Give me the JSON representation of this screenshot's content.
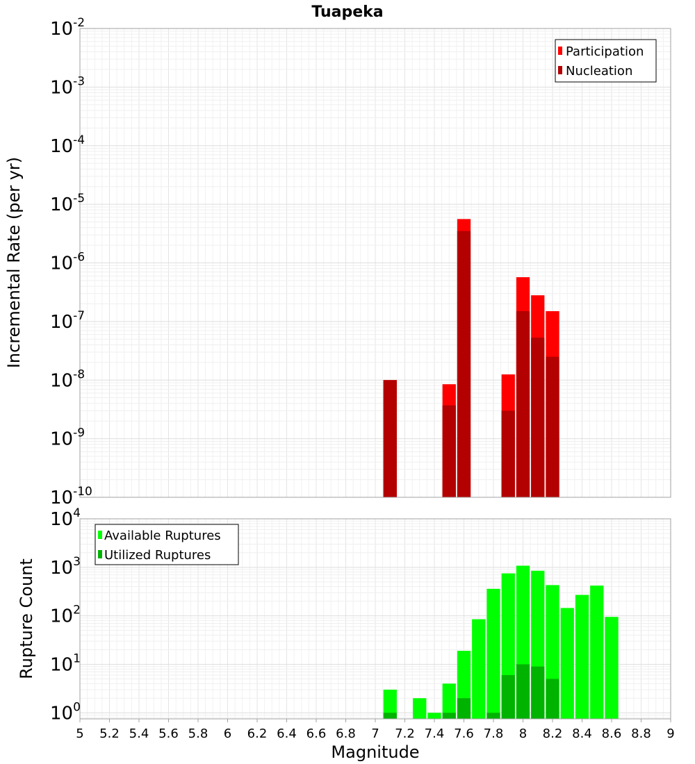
{
  "chart_data": [
    {
      "type": "bar",
      "title": "Tuapeka",
      "xlabel": "",
      "ylabel": "Incremental Rate (per yr)",
      "xlim": [
        5,
        9
      ],
      "ylim": [
        1e-10,
        0.01
      ],
      "yscale": "log",
      "y_tick_exponents": [
        "-10",
        "-9",
        "-8",
        "-7",
        "-6",
        "-5",
        "-4",
        "-3",
        "-2"
      ],
      "grid": true,
      "legend_position": "top-right",
      "series": [
        {
          "name": "Participation",
          "color": "#ff0000",
          "x": [
            7.1,
            7.5,
            7.6,
            7.9,
            8.0,
            8.1,
            8.2
          ],
          "values": [
            1e-08,
            8.5e-09,
            5.6e-06,
            1.25e-08,
            5.7e-07,
            2.8e-07,
            1.5e-07
          ]
        },
        {
          "name": "Nucleation",
          "color": "#b30000",
          "x": [
            7.1,
            7.5,
            7.6,
            7.9,
            8.0,
            8.1,
            8.2
          ],
          "values": [
            1e-08,
            3.7e-09,
            3.5e-06,
            3e-09,
            1.5e-07,
            5.3e-08,
            2.5e-08
          ]
        }
      ]
    },
    {
      "type": "bar",
      "title": "",
      "xlabel": "Magnitude",
      "ylabel": "Rupture Count",
      "xlim": [
        5,
        9
      ],
      "ylim": [
        0.75,
        10000
      ],
      "yscale": "log",
      "y_tick_exponents": [
        "0",
        "1",
        "2",
        "3",
        "4"
      ],
      "x_tick_labels": [
        "5",
        "5.2",
        "5.4",
        "5.6",
        "5.8",
        "6",
        "6.2",
        "6.4",
        "6.6",
        "6.8",
        "7",
        "7.2",
        "7.4",
        "7.6",
        "7.8",
        "8",
        "8.2",
        "8.4",
        "8.6",
        "8.8",
        "9"
      ],
      "grid": true,
      "legend_position": "top-left",
      "series": [
        {
          "name": "Available Ruptures",
          "color": "#00ff00",
          "x": [
            7.1,
            7.3,
            7.4,
            7.5,
            7.6,
            7.7,
            7.8,
            7.9,
            8.0,
            8.1,
            8.2,
            8.3,
            8.4,
            8.5,
            8.6
          ],
          "values": [
            3,
            2,
            1,
            4,
            19,
            85,
            360,
            750,
            1080,
            850,
            430,
            145,
            270,
            420,
            95
          ]
        },
        {
          "name": "Utilized Ruptures",
          "color": "#00b300",
          "x": [
            7.1,
            7.5,
            7.6,
            7.8,
            7.9,
            8.0,
            8.1,
            8.2
          ],
          "values": [
            1,
            1,
            2,
            1,
            6,
            10,
            9,
            5
          ]
        }
      ]
    }
  ]
}
